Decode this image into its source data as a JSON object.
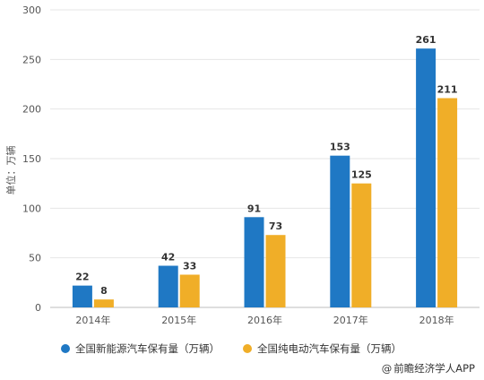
{
  "chart_data": {
    "type": "bar",
    "categories": [
      "2014年",
      "2015年",
      "2016年",
      "2017年",
      "2018年"
    ],
    "series": [
      {
        "name": "全国新能源汽车保有量（万辆）",
        "values": [
          22,
          42,
          91,
          153,
          261
        ],
        "color": "#1f78c4"
      },
      {
        "name": "全国纯电动汽车保有量（万辆）",
        "values": [
          8,
          33,
          73,
          125,
          211
        ],
        "color": "#f0ae28"
      }
    ],
    "ylabel": "单位：万辆",
    "ylim": [
      0,
      300
    ],
    "yticks": [
      0,
      50,
      100,
      150,
      200,
      250,
      300
    ],
    "grid": "horizontal",
    "legend_position": "bottom"
  },
  "source": {
    "at_symbol": "@",
    "text": "前瞻经济学人APP"
  }
}
